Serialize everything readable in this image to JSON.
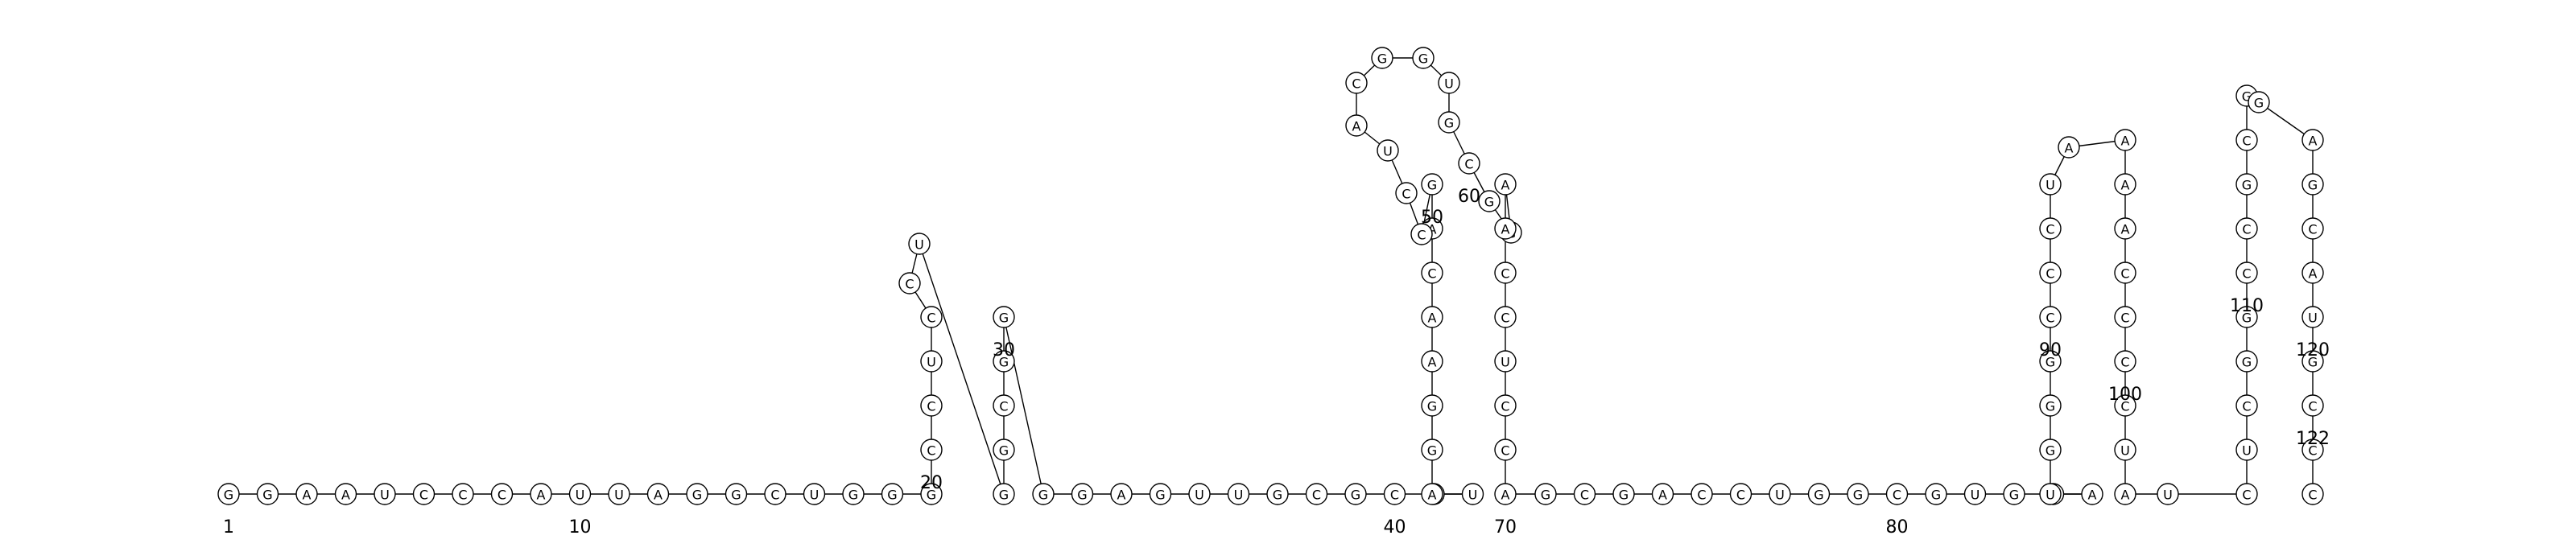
{
  "structure": {
    "sequence": "GGAAUCCCAUUAGGCUGGGCCUCCUGGCGGGGAGUUGCGCGUAGGAACAGCCUACGGUGCGGAACCUCCAGCGACCUGGCGUGCAUGGGCCCUAAAACCCCUAUCUCGGCCGCGGAGCAUGCCC",
    "position_labels": [
      {
        "label": "1",
        "pos": 1
      },
      {
        "label": "10",
        "pos": 10
      },
      {
        "label": "20",
        "pos": 20
      },
      {
        "label": "30",
        "pos": 30
      },
      {
        "label": "40",
        "pos": 40
      },
      {
        "label": "50",
        "pos": 50
      },
      {
        "label": "60",
        "pos": 60
      },
      {
        "label": "70",
        "pos": 70
      },
      {
        "label": "80",
        "pos": 80
      },
      {
        "label": "90",
        "pos": 90
      },
      {
        "label": "100",
        "pos": 100
      },
      {
        "label": "110",
        "pos": 110
      },
      {
        "label": "120",
        "pos": 120
      },
      {
        "label": "122",
        "pos": 122
      }
    ],
    "colors": {
      "backbone": "#000000",
      "pair": "#0000ff",
      "pseudoknot": "#33cc33"
    }
  }
}
